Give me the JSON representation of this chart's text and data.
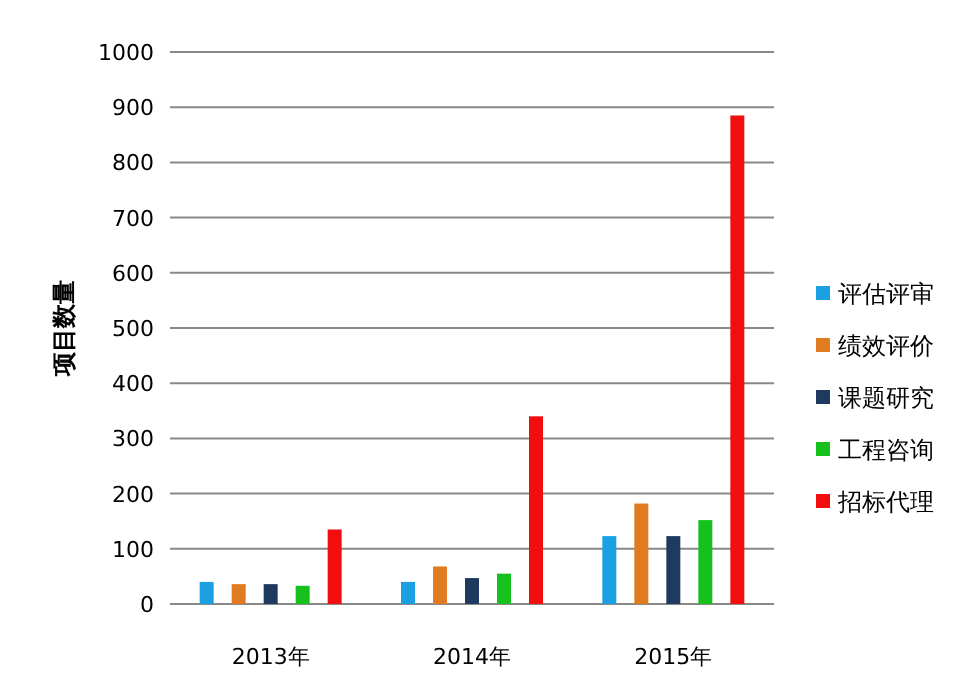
{
  "chart_data": {
    "type": "bar",
    "ylabel": "项目数量",
    "categories": [
      "2013年",
      "2014年",
      "2015年"
    ],
    "series": [
      {
        "name": "评估评审",
        "color": "#1ba1e2",
        "values": [
          40,
          40,
          123
        ]
      },
      {
        "name": "绩效评价",
        "color": "#e07b22",
        "values": [
          36,
          68,
          182
        ]
      },
      {
        "name": "课题研究",
        "color": "#1f3a5f",
        "values": [
          36,
          47,
          123
        ]
      },
      {
        "name": "工程咨询",
        "color": "#17c11d",
        "values": [
          33,
          55,
          152
        ]
      },
      {
        "name": "招标代理",
        "color": "#f20e0e",
        "values": [
          135,
          340,
          885
        ]
      }
    ],
    "ylim": [
      0,
      1000
    ],
    "yticks": [
      0,
      100,
      200,
      300,
      400,
      500,
      600,
      700,
      800,
      900,
      1000
    ],
    "grid": "y",
    "legend": "right"
  }
}
